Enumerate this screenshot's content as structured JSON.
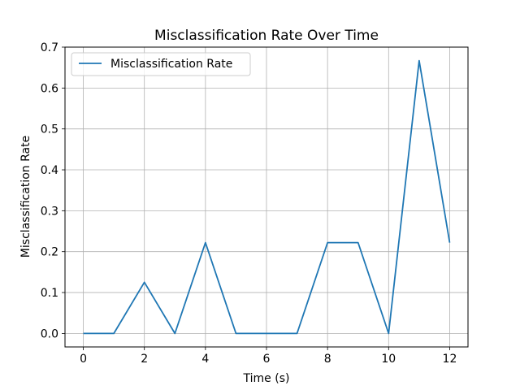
{
  "chart_data": {
    "type": "line",
    "title": "Misclassification Rate Over Time",
    "xlabel": "Time (s)",
    "ylabel": "Misclassification Rate",
    "xlim": [
      -0.6,
      12.6
    ],
    "ylim": [
      -0.033,
      0.7
    ],
    "x": [
      0,
      1,
      2,
      3,
      4,
      5,
      6,
      7,
      8,
      9,
      10,
      11,
      12
    ],
    "x_ticks": [
      0,
      2,
      4,
      6,
      8,
      10,
      12
    ],
    "x_tick_labels": [
      "0",
      "2",
      "4",
      "6",
      "8",
      "10",
      "12"
    ],
    "y_ticks": [
      0.0,
      0.1,
      0.2,
      0.3,
      0.4,
      0.5,
      0.6,
      0.7
    ],
    "y_tick_labels": [
      "0.0",
      "0.1",
      "0.2",
      "0.3",
      "0.4",
      "0.5",
      "0.6",
      "0.7"
    ],
    "grid": true,
    "legend_position": "top-left",
    "series": [
      {
        "name": "Misclassification Rate",
        "color": "#1f77b4",
        "values": [
          0.0,
          0.0,
          0.125,
          0.0,
          0.222,
          0.0,
          0.0,
          0.0,
          0.222,
          0.222,
          0.0,
          0.667,
          0.222
        ]
      }
    ]
  }
}
